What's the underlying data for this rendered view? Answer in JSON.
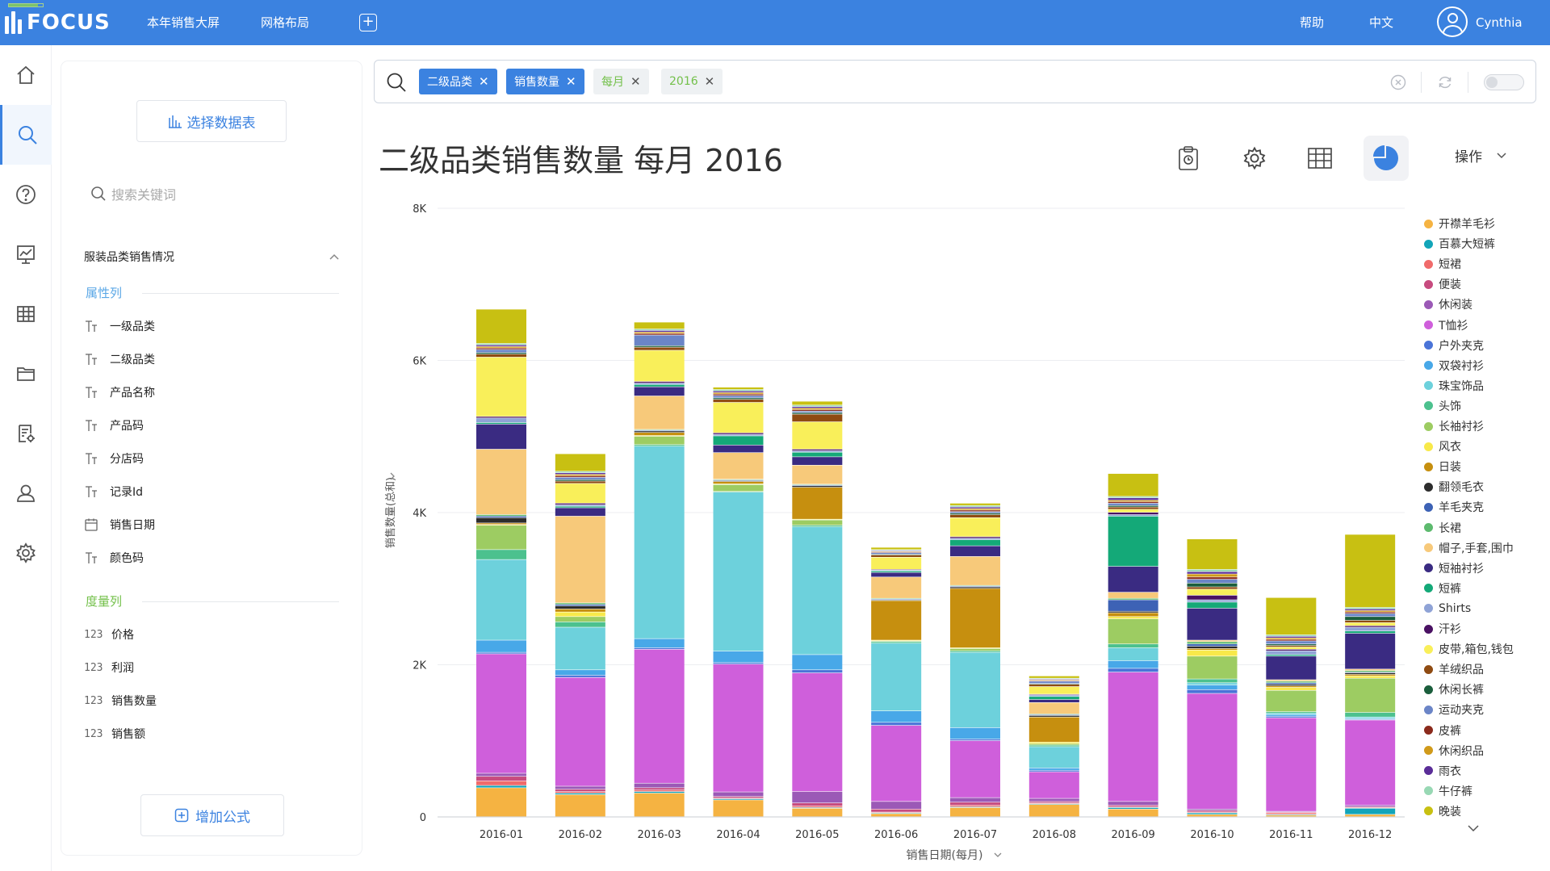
{
  "topbar": {
    "logo_text": "FOCUS",
    "nav": [
      "本年销售大屏",
      "网格布局"
    ],
    "add_tab_label": "+",
    "help": "帮助",
    "language": "中文",
    "user": "Cynthia"
  },
  "rail": {
    "icons": [
      "home-icon",
      "search-icon",
      "help-icon",
      "dashboard-icon",
      "table-icon",
      "folder-icon",
      "task-settings-icon",
      "user-icon",
      "gear-icon"
    ],
    "active": "search-icon"
  },
  "datapanel": {
    "select_table_label": "选择数据表",
    "search_placeholder": "搜索关键词",
    "table_name": "服装品类销售情况",
    "attribute_section": "属性列",
    "attributes": [
      {
        "icon": "text-type-icon",
        "label": "一级品类"
      },
      {
        "icon": "text-type-icon",
        "label": "二级品类"
      },
      {
        "icon": "text-type-icon",
        "label": "产品名称"
      },
      {
        "icon": "text-type-icon",
        "label": "产品码"
      },
      {
        "icon": "text-type-icon",
        "label": "分店码"
      },
      {
        "icon": "text-type-icon",
        "label": "记录Id"
      },
      {
        "icon": "calendar-icon",
        "label": "销售日期"
      },
      {
        "icon": "text-type-icon",
        "label": "颜色码"
      }
    ],
    "measure_section": "度量列",
    "measure_prefix": "123",
    "measures": [
      "价格",
      "利润",
      "销售数量",
      "销售额"
    ],
    "add_formula_label": "增加公式"
  },
  "search": {
    "chips": [
      {
        "label": "二级品类",
        "style": "blue"
      },
      {
        "label": "销售数量",
        "style": "blue"
      },
      {
        "label": "每月",
        "style": "green"
      },
      {
        "label": "2016",
        "style": "green"
      }
    ]
  },
  "title": "二级品类销售数量 每月 2016",
  "toolbar": {
    "tools": [
      "clipboard-icon",
      "gear-icon",
      "table-view-icon",
      "pie-chart-icon"
    ],
    "active": "pie-chart-icon",
    "ops_label": "操作"
  },
  "colors": {
    "brand": "#3b82e0",
    "chip_green_text": "#73c04a"
  },
  "chart_data": {
    "type": "bar",
    "stacked": true,
    "xlabel": "销售日期(每月)",
    "ylabel": "销售数量(总和)",
    "ylim": [
      0,
      8000
    ],
    "yticks": [
      0,
      2000,
      4000,
      6000,
      8000
    ],
    "ytick_labels": [
      "0",
      "2K",
      "4K",
      "6K",
      "8K"
    ],
    "categories": [
      "2016-01",
      "2016-02",
      "2016-03",
      "2016-04",
      "2016-05",
      "2016-06",
      "2016-07",
      "2016-08",
      "2016-09",
      "2016-10",
      "2016-11",
      "2016-12"
    ],
    "legend_position": "right",
    "series": [
      {
        "name": "开襟羊毛衫",
        "color": "#f5b342",
        "values": [
          380,
          290,
          310,
          220,
          110,
          40,
          120,
          160,
          100,
          30,
          20,
          30
        ]
      },
      {
        "name": "百慕大短裤",
        "color": "#12a5b9",
        "values": [
          30,
          20,
          20,
          15,
          10,
          10,
          10,
          10,
          20,
          20,
          10,
          80
        ]
      },
      {
        "name": "短裙",
        "color": "#f06b6b",
        "values": [
          60,
          20,
          20,
          10,
          20,
          10,
          20,
          10,
          10,
          10,
          20,
          10
        ]
      },
      {
        "name": "便装",
        "color": "#c74b7f",
        "values": [
          60,
          30,
          30,
          20,
          40,
          40,
          40,
          20,
          20,
          20,
          10,
          10
        ]
      },
      {
        "name": "休闲装",
        "color": "#9b59b6",
        "values": [
          40,
          40,
          60,
          60,
          150,
          100,
          60,
          40,
          50,
          20,
          10,
          20
        ]
      },
      {
        "name": "T恤衫",
        "color": "#cf5fdb",
        "values": [
          1570,
          1430,
          1760,
          1680,
          1560,
          1000,
          750,
          350,
          1700,
          1520,
          1230,
          1120
        ]
      },
      {
        "name": "户外夹克",
        "color": "#4a74d8",
        "values": [
          20,
          30,
          20,
          20,
          40,
          40,
          20,
          20,
          50,
          50,
          20,
          10
        ]
      },
      {
        "name": "双袋衬衫",
        "color": "#48a8e8",
        "values": [
          160,
          70,
          120,
          150,
          200,
          150,
          150,
          30,
          100,
          60,
          20,
          10
        ]
      },
      {
        "name": "珠宝饰品",
        "color": "#6dd1dc",
        "values": [
          1060,
          560,
          2530,
          2090,
          1680,
          890,
          990,
          280,
          170,
          30,
          20,
          20
        ]
      },
      {
        "name": "头饰",
        "color": "#4cc18e",
        "values": [
          130,
          70,
          20,
          10,
          20,
          20,
          20,
          20,
          50,
          50,
          20,
          60
        ]
      },
      {
        "name": "长袖衬衫",
        "color": "#9dcc62",
        "values": [
          320,
          70,
          110,
          90,
          70,
          10,
          30,
          20,
          330,
          300,
          280,
          450
        ]
      },
      {
        "name": "风衣",
        "color": "#f8e94a",
        "values": [
          10,
          60,
          10,
          10,
          10,
          10,
          10,
          20,
          30,
          80,
          40,
          30
        ]
      },
      {
        "name": "日装",
        "color": "#c68f0f",
        "values": [
          20,
          40,
          40,
          30,
          420,
          520,
          780,
          330,
          50,
          20,
          20,
          20
        ]
      },
      {
        "name": "翻领毛衣",
        "color": "#2d2d2d",
        "values": [
          70,
          40,
          20,
          10,
          20,
          10,
          20,
          20,
          20,
          30,
          20,
          20
        ]
      },
      {
        "name": "羊毛夹克",
        "color": "#3d62b5",
        "values": [
          20,
          20,
          10,
          10,
          10,
          10,
          10,
          10,
          150,
          30,
          20,
          10
        ]
      },
      {
        "name": "长裙",
        "color": "#5dba6e",
        "values": [
          20,
          20,
          10,
          10,
          10,
          10,
          10,
          10,
          20,
          30,
          20,
          20
        ]
      },
      {
        "name": "帽子,手套,围巾",
        "color": "#f7c97a",
        "values": [
          860,
          1140,
          440,
          350,
          250,
          280,
          380,
          150,
          80,
          20,
          20,
          20
        ]
      },
      {
        "name": "短袖衬衫",
        "color": "#3a2b82",
        "values": [
          330,
          110,
          120,
          100,
          110,
          60,
          140,
          40,
          340,
          420,
          310,
          470
        ]
      },
      {
        "name": "短裤",
        "color": "#14a978",
        "values": [
          20,
          20,
          30,
          120,
          60,
          20,
          80,
          40,
          660,
          80,
          20,
          30
        ]
      },
      {
        "name": "Shirts",
        "color": "#8fa3d6",
        "values": [
          60,
          20,
          20,
          20,
          20,
          10,
          20,
          20,
          20,
          30,
          50,
          50
        ]
      },
      {
        "name": "汗衫",
        "color": "#4a1163",
        "values": [
          20,
          20,
          20,
          20,
          20,
          10,
          20,
          10,
          30,
          60,
          20,
          20
        ]
      },
      {
        "name": "皮带,箱包,钱包",
        "color": "#f9ef5a",
        "values": [
          780,
          260,
          410,
          400,
          360,
          160,
          250,
          100,
          40,
          80,
          30,
          40
        ]
      },
      {
        "name": "羊绒织品",
        "color": "#8f4b12",
        "values": [
          40,
          30,
          40,
          40,
          100,
          30,
          40,
          30,
          30,
          30,
          20,
          30
        ]
      },
      {
        "name": "休闲长裤",
        "color": "#1b5e3c",
        "values": [
          20,
          20,
          20,
          20,
          20,
          10,
          20,
          10,
          20,
          50,
          20,
          50
        ]
      },
      {
        "name": "运动夹克",
        "color": "#6b85c7",
        "values": [
          40,
          30,
          140,
          30,
          20,
          20,
          20,
          30,
          30,
          50,
          40,
          40
        ]
      },
      {
        "name": "皮裤",
        "color": "#8b2a1c",
        "values": [
          20,
          20,
          20,
          20,
          20,
          10,
          20,
          10,
          20,
          30,
          20,
          20
        ]
      },
      {
        "name": "休闲织品",
        "color": "#d09a1a",
        "values": [
          20,
          20,
          20,
          20,
          20,
          10,
          20,
          10,
          20,
          40,
          20,
          20
        ]
      },
      {
        "name": "雨衣",
        "color": "#5a2d98",
        "values": [
          20,
          20,
          20,
          20,
          20,
          10,
          20,
          10,
          30,
          30,
          20,
          20
        ]
      },
      {
        "name": "牛仔裤",
        "color": "#98d8b4",
        "values": [
          20,
          20,
          20,
          20,
          20,
          10,
          20,
          10,
          20,
          30,
          20,
          20
        ]
      },
      {
        "name": "晚装",
        "color": "#c8c012",
        "values": [
          450,
          230,
          90,
          30,
          50,
          30,
          30,
          30,
          300,
          400,
          490,
          960
        ]
      }
    ]
  }
}
